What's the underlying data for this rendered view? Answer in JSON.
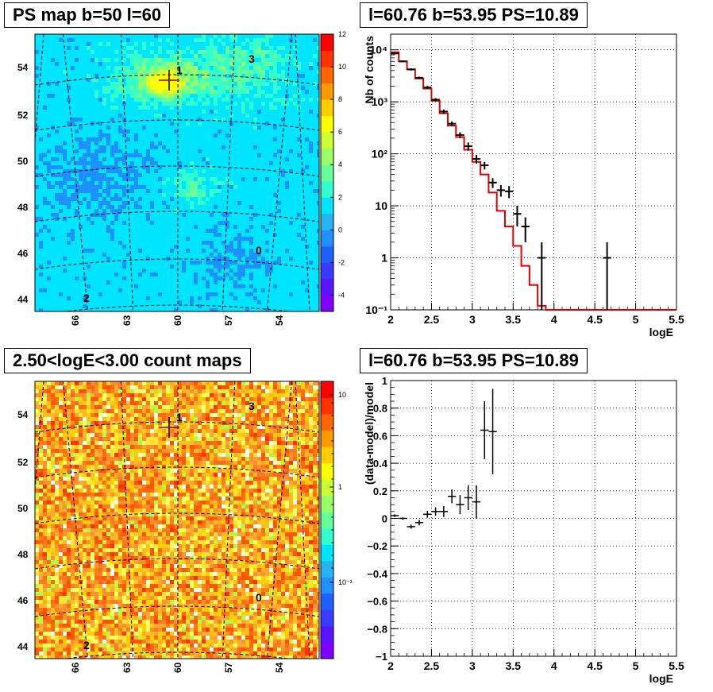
{
  "panels": {
    "tl_title": "PS map b=50 l=60",
    "tr_title": "l=60.76 b=53.95 PS=10.89",
    "bl_title": "2.50<logE<3.00 count maps",
    "br_title": "l=60.76 b=53.95 PS=10.89"
  },
  "colors": {
    "data": "#000000",
    "model": "#e00000",
    "grid": "#000000"
  },
  "chart_data": [
    {
      "type": "heatmap",
      "name": "ps-map",
      "xlabel": "",
      "ylabel": "",
      "x_ticks": [
        "66",
        "63",
        "60",
        "57",
        "54"
      ],
      "y_ticks": [
        "44",
        "46",
        "48",
        "50",
        "52",
        "54"
      ],
      "colorbar_ticks": [
        "-4",
        "-2",
        "0",
        "2",
        "4",
        "6",
        "8",
        "10",
        "12"
      ],
      "colorbar_range": [
        -5,
        12
      ],
      "sources": [
        {
          "label": "1",
          "l": 59.5,
          "b": 54.0
        },
        {
          "label": "3",
          "l": 55.5,
          "b": 54.3
        },
        {
          "label": "0",
          "l": 55.0,
          "b": 46.2
        },
        {
          "label": "2",
          "l": 66.2,
          "b": 44.1
        }
      ]
    },
    {
      "type": "line",
      "name": "spectrum",
      "xlabel": "logE",
      "ylabel": "Nb of counts",
      "log_y": true,
      "xlim": [
        2,
        5.5
      ],
      "ylim": [
        0.1,
        20000
      ],
      "x_ticks": [
        "2",
        "2.5",
        "3",
        "3.5",
        "4",
        "4.5",
        "5",
        "5.5"
      ],
      "y_ticks": [
        "10⁻¹",
        "1",
        "10",
        "10²",
        "10³",
        "10⁴"
      ],
      "grid": true,
      "model_edges": [
        2.0,
        2.1,
        2.2,
        2.3,
        2.4,
        2.5,
        2.6,
        2.7,
        2.8,
        2.9,
        3.0,
        3.1,
        3.2,
        3.3,
        3.4,
        3.5,
        3.6,
        3.7,
        3.8,
        3.9,
        4.0,
        5.5
      ],
      "model_values": [
        9000,
        6000,
        4200,
        2800,
        1800,
        1050,
        600,
        350,
        210,
        120,
        70,
        40,
        18,
        8,
        4,
        1.7,
        0.7,
        0.3,
        0.12,
        0.1,
        0.1
      ],
      "data_points": [
        {
          "x": 2.05,
          "y": 8500,
          "dy": 300
        },
        {
          "x": 2.15,
          "y": 6000,
          "dy": 250
        },
        {
          "x": 2.25,
          "y": 4200,
          "dy": 200
        },
        {
          "x": 2.35,
          "y": 2900,
          "dy": 150
        },
        {
          "x": 2.45,
          "y": 1900,
          "dy": 120
        },
        {
          "x": 2.55,
          "y": 1100,
          "dy": 80
        },
        {
          "x": 2.65,
          "y": 650,
          "dy": 60
        },
        {
          "x": 2.75,
          "y": 380,
          "dy": 40
        },
        {
          "x": 2.85,
          "y": 230,
          "dy": 30
        },
        {
          "x": 2.95,
          "y": 140,
          "dy": 25
        },
        {
          "x": 3.05,
          "y": 80,
          "dy": 15
        },
        {
          "x": 3.15,
          "y": 60,
          "dy": 10
        },
        {
          "x": 3.25,
          "y": 28,
          "dy": 6
        },
        {
          "x": 3.35,
          "y": 20,
          "dy": 5
        },
        {
          "x": 3.45,
          "y": 19,
          "dy": 5
        },
        {
          "x": 3.55,
          "y": 7,
          "dy": 3
        },
        {
          "x": 3.65,
          "y": 4,
          "dy": 2
        },
        {
          "x": 3.85,
          "y": 1,
          "dy": 1
        },
        {
          "x": 4.65,
          "y": 1,
          "dy": 1
        }
      ]
    },
    {
      "type": "heatmap",
      "name": "count-map",
      "xlabel": "",
      "ylabel": "",
      "x_ticks": [
        "66",
        "63",
        "60",
        "57",
        "54"
      ],
      "y_ticks": [
        "44",
        "46",
        "48",
        "50",
        "52",
        "54"
      ],
      "colorbar_ticks": [
        "10",
        "1",
        "10⁻¹"
      ],
      "log_colorbar": true,
      "sources": [
        {
          "label": "1",
          "l": 59.5,
          "b": 54.0
        },
        {
          "label": "3",
          "l": 55.5,
          "b": 54.3
        },
        {
          "label": "0",
          "l": 55.0,
          "b": 46.2
        },
        {
          "label": "2",
          "l": 66.2,
          "b": 44.1
        }
      ]
    },
    {
      "type": "scatter",
      "name": "residuals",
      "xlabel": "logE",
      "ylabel": "(data-model)/model",
      "xlim": [
        2,
        5.5
      ],
      "ylim": [
        -1,
        1
      ],
      "x_ticks": [
        "2",
        "2.5",
        "3",
        "3.5",
        "4",
        "4.5",
        "5",
        "5.5"
      ],
      "y_ticks": [
        "−1",
        "−0.8",
        "−0.6",
        "−0.4",
        "−0.2",
        "0",
        "0.2",
        "0.4",
        "0.6",
        "0.8",
        "1"
      ],
      "grid": true,
      "points": [
        {
          "x": 2.05,
          "y": 0.02,
          "dy": 0.01
        },
        {
          "x": 2.15,
          "y": 0.0,
          "dy": 0.01
        },
        {
          "x": 2.25,
          "y": -0.06,
          "dy": 0.015
        },
        {
          "x": 2.35,
          "y": -0.03,
          "dy": 0.02
        },
        {
          "x": 2.45,
          "y": 0.03,
          "dy": 0.025
        },
        {
          "x": 2.55,
          "y": 0.05,
          "dy": 0.03
        },
        {
          "x": 2.65,
          "y": 0.05,
          "dy": 0.04
        },
        {
          "x": 2.75,
          "y": 0.16,
          "dy": 0.05
        },
        {
          "x": 2.85,
          "y": 0.1,
          "dy": 0.07
        },
        {
          "x": 2.95,
          "y": 0.15,
          "dy": 0.09
        },
        {
          "x": 3.05,
          "y": 0.12,
          "dy": 0.12
        },
        {
          "x": 3.15,
          "y": 0.64,
          "dy": 0.21
        },
        {
          "x": 3.25,
          "y": 0.63,
          "dy": 0.31
        }
      ]
    }
  ]
}
